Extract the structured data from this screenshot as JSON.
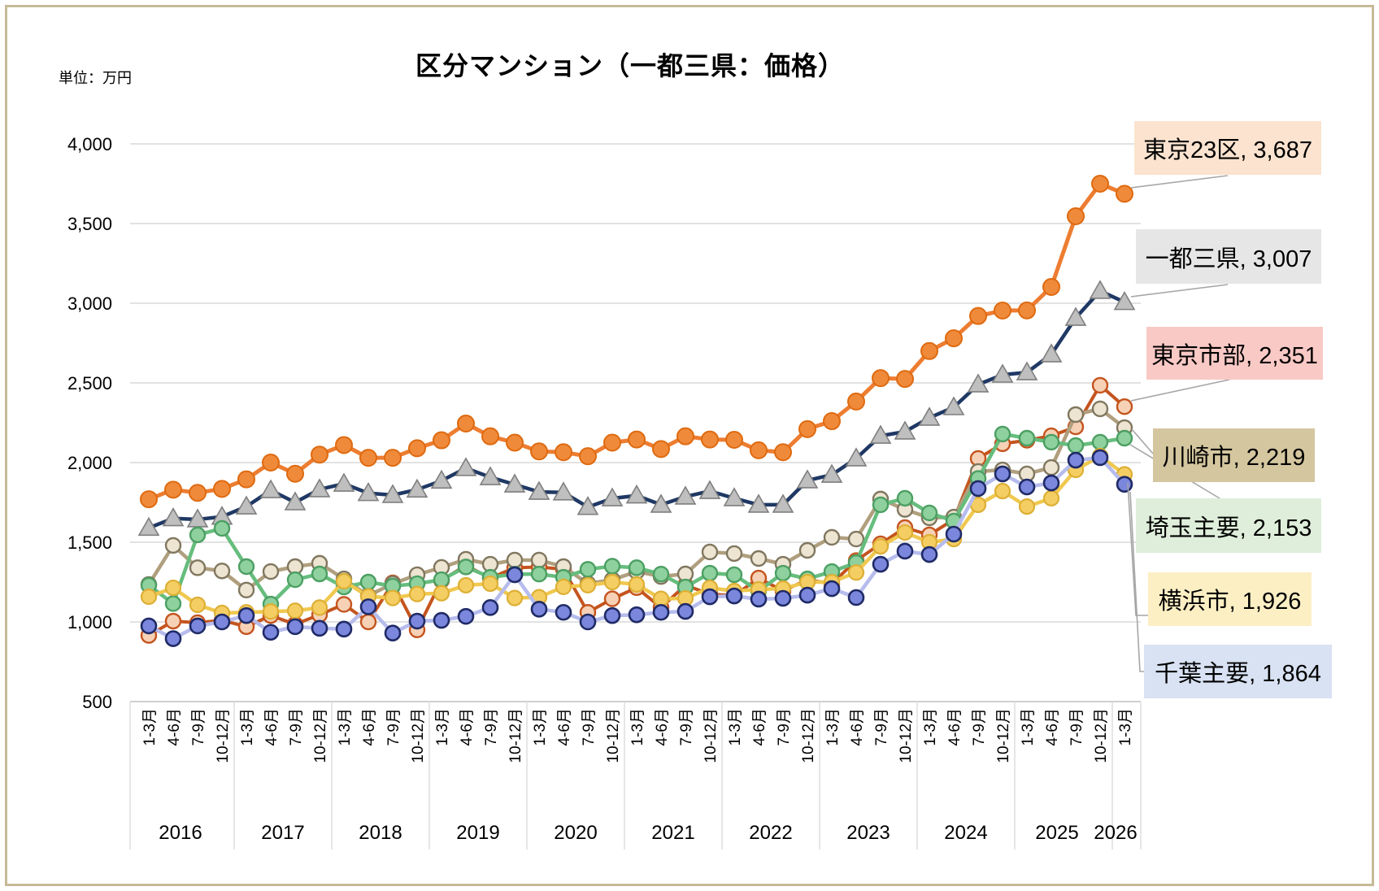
{
  "chart": {
    "title": "区分マンション（一都三県：価格）",
    "unit_label": "単位：万円"
  },
  "chart_data": {
    "type": "line",
    "title": "区分マンション（一都三県：価格）",
    "unit": "万円",
    "ylim": [
      500,
      4000
    ],
    "y_ticks": [
      "4,000",
      "3,500",
      "3,000",
      "2,500",
      "2,000",
      "1,500",
      "1,000",
      "500"
    ],
    "y_tick_values": [
      4000,
      3500,
      3000,
      2500,
      2000,
      1500,
      1000,
      500
    ],
    "grid": true,
    "legend_position": "right-callouts",
    "year_groups": [
      "2016",
      "2017",
      "2018",
      "2019",
      "2020",
      "2021",
      "2022",
      "2023",
      "2024",
      "2025",
      "2026"
    ],
    "categories": [
      "1-3月",
      "4-6月",
      "7-9月",
      "10-12月",
      "1-3月",
      "4-6月",
      "7-9月",
      "10-12月",
      "1-3月",
      "4-6月",
      "7-9月",
      "10-12月",
      "1-3月",
      "4-6月",
      "7-9月",
      "10-12月",
      "1-3月",
      "4-6月",
      "7-9月",
      "10-12月",
      "1-3月",
      "4-6月",
      "7-9月",
      "10-12月",
      "1-3月",
      "4-6月",
      "7-9月",
      "10-12月",
      "1-3月",
      "4-6月",
      "7-9月",
      "10-12月",
      "1-3月",
      "4-6月",
      "7-9月",
      "10-12月",
      "1-3月",
      "4-6月",
      "7-9月",
      "10-12月",
      "1-3月"
    ],
    "series": [
      {
        "name": "東京23区",
        "final_value": 3687,
        "color": "#ed7d31",
        "values": [
          1770,
          1830,
          1810,
          1835,
          1895,
          2000,
          1930,
          2050,
          2110,
          2030,
          2030,
          2090,
          2140,
          2245,
          2165,
          2125,
          2070,
          2065,
          2040,
          2125,
          2145,
          2085,
          2165,
          2145,
          2143,
          2077,
          2065,
          2210,
          2260,
          2383,
          2530,
          2525,
          2700,
          2780,
          2920,
          2954,
          2955,
          3102,
          3546,
          3750,
          3687
        ]
      },
      {
        "name": "一都三県",
        "final_value": 3007,
        "color": "#1f3864",
        "values": [
          1590,
          1650,
          1643,
          1660,
          1724,
          1826,
          1750,
          1832,
          1867,
          1808,
          1796,
          1830,
          1886,
          1965,
          1908,
          1862,
          1816,
          1812,
          1721,
          1775,
          1793,
          1735,
          1786,
          1821,
          1776,
          1735,
          1735,
          1888,
          1923,
          2026,
          2168,
          2194,
          2281,
          2347,
          2490,
          2551,
          2566,
          2679,
          2908,
          3077,
          3007
        ]
      },
      {
        "name": "東京市部",
        "final_value": 2351,
        "color": "#c4541e",
        "values": [
          915,
          1005,
          995,
          1010,
          970,
          1040,
          985,
          1045,
          1110,
          1000,
          1245,
          950,
          1260,
          1355,
          1275,
          1340,
          1345,
          1330,
          1060,
          1145,
          1215,
          1090,
          1230,
          1175,
          1165,
          1275,
          1195,
          1265,
          1240,
          1385,
          1490,
          1592,
          1546,
          1643,
          2026,
          2118,
          2140,
          2168,
          2224,
          2485,
          2351
        ]
      },
      {
        "name": "川崎市",
        "final_value": 2219,
        "color": "#b09f7e",
        "values": [
          1235,
          1480,
          1340,
          1320,
          1200,
          1316,
          1347,
          1368,
          1270,
          1165,
          1240,
          1296,
          1342,
          1393,
          1362,
          1388,
          1388,
          1347,
          1240,
          1265,
          1316,
          1285,
          1301,
          1439,
          1429,
          1398,
          1362,
          1449,
          1531,
          1520,
          1771,
          1706,
          1653,
          1658,
          1944,
          1954,
          1929,
          1969,
          2301,
          2337,
          2219
        ]
      },
      {
        "name": "埼玉主要",
        "final_value": 2153,
        "color": "#66bd7d",
        "values": [
          1230,
          1115,
          1546,
          1587,
          1347,
          1112,
          1265,
          1301,
          1219,
          1250,
          1225,
          1240,
          1265,
          1345,
          1280,
          1300,
          1300,
          1280,
          1330,
          1350,
          1340,
          1300,
          1219,
          1306,
          1296,
          1194,
          1306,
          1270,
          1316,
          1372,
          1735,
          1776,
          1684,
          1633,
          1900,
          2179,
          2153,
          2128,
          2107,
          2128,
          2153
        ]
      },
      {
        "name": "横浜市",
        "final_value": 1926,
        "color": "#f0c84f",
        "values": [
          1158,
          1214,
          1107,
          1056,
          1060,
          1065,
          1070,
          1090,
          1255,
          1160,
          1150,
          1175,
          1180,
          1230,
          1240,
          1150,
          1155,
          1220,
          1230,
          1250,
          1235,
          1145,
          1148,
          1214,
          1194,
          1204,
          1209,
          1250,
          1250,
          1310,
          1474,
          1561,
          1500,
          1520,
          1735,
          1821,
          1724,
          1776,
          1954,
          2041,
          1926
        ]
      },
      {
        "name": "千葉主要",
        "final_value": 1864,
        "color": "#b6bcec",
        "values": [
          975,
          895,
          975,
          1000,
          1040,
          935,
          970,
          960,
          955,
          1095,
          930,
          1005,
          1010,
          1035,
          1090,
          1296,
          1080,
          1060,
          1000,
          1040,
          1045,
          1060,
          1066,
          1158,
          1163,
          1143,
          1148,
          1168,
          1209,
          1153,
          1362,
          1444,
          1423,
          1551,
          1837,
          1929,
          1847,
          1872,
          2015,
          2031,
          1864
        ]
      }
    ]
  },
  "legend": {
    "items": [
      {
        "label": "東京23区",
        "value": "3,687",
        "text": "東京23区, 3,687",
        "bg": "#fbe3cf"
      },
      {
        "label": "一都三県",
        "value": "3,007",
        "text": "一都三県, 3,007",
        "bg": "#e7e6e6"
      },
      {
        "label": "東京市部",
        "value": "2,351",
        "text": "東京市部, 2,351",
        "bg": "#f9c9c5"
      },
      {
        "label": "川崎市",
        "value": "2,219",
        "text": "川崎市, 2,219",
        "bg": "#d4c69f"
      },
      {
        "label": "埼玉主要",
        "value": "2,153",
        "text": "埼玉主要, 2,153",
        "bg": "#dfeeda"
      },
      {
        "label": "横浜市",
        "value": "1,926",
        "text": "横浜市, 1,926",
        "bg": "#fcefc4"
      },
      {
        "label": "千葉主要",
        "value": "1,864",
        "text": "千葉主要, 1,864",
        "bg": "#d8e2f3"
      }
    ]
  }
}
